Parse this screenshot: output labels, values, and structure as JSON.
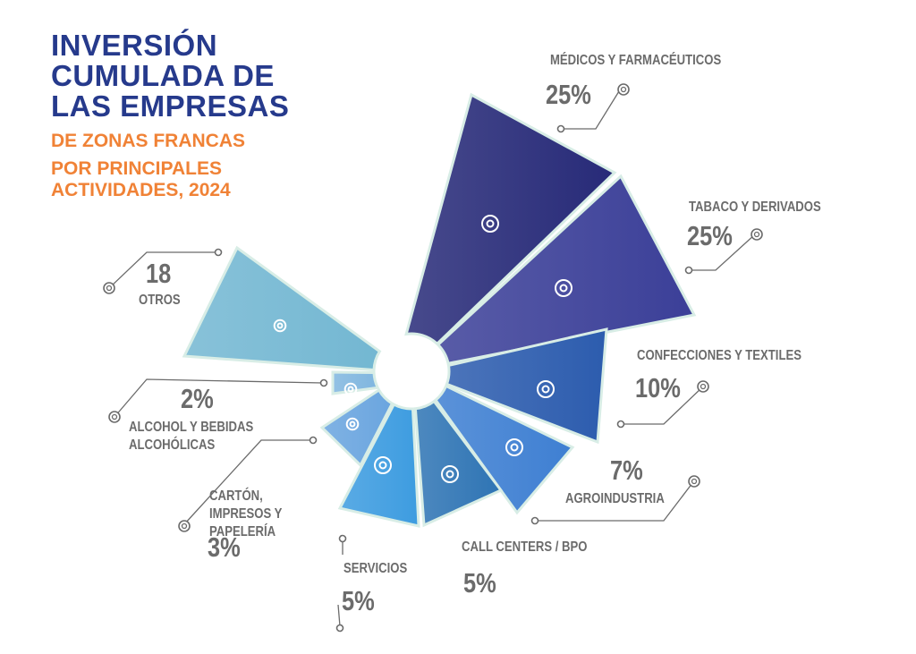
{
  "title": {
    "line1": "INVERSIÓN",
    "line2": "CUMULADA DE",
    "line3": "LAS EMPRESAS",
    "sub1": "DE ZONAS FRANCAS",
    "sub2": "POR PRINCIPALES",
    "sub3": "ACTIVIDADES, 2024"
  },
  "chart_data": {
    "type": "pie",
    "title": "INVERSIÓN CUMULADA DE LAS EMPRESAS DE ZONAS FRANCAS POR PRINCIPALES ACTIVIDADES, 2024",
    "categories": [
      "MÉDICOS Y FARMACÉUTICOS",
      "TABACO Y DERIVADOS",
      "CONFECCIONES Y TEXTILES",
      "AGROINDUSTRIA",
      "CALL CENTERS / BPO",
      "SERVICIOS",
      "CARTÓN, IMPRESOS Y PAPELERÍA",
      "ALCOHOL Y BEBIDAS ALCOHÓLICAS",
      "OTROS"
    ],
    "values": [
      25,
      25,
      10,
      7,
      5,
      5,
      3,
      2,
      18
    ],
    "labels": [
      "25%",
      "25%",
      "10%",
      "7%",
      "5%",
      "5%",
      "3%",
      "2%",
      "18"
    ],
    "icons": [
      "medicine-icon",
      "leaf-icon",
      "textile-weave-icon",
      "barn-icon",
      "headset-agent-icon",
      "hand-gear-icon",
      "paper-stack-icon",
      "bottle-glass-icon",
      "gear-icon"
    ],
    "colors": [
      "#272a78",
      "#3b3f98",
      "#2c5cae",
      "#3e7fd2",
      "#2e74b4",
      "#3d9ce0",
      "#6aa5df",
      "#80b6df",
      "#73b7d2"
    ]
  }
}
